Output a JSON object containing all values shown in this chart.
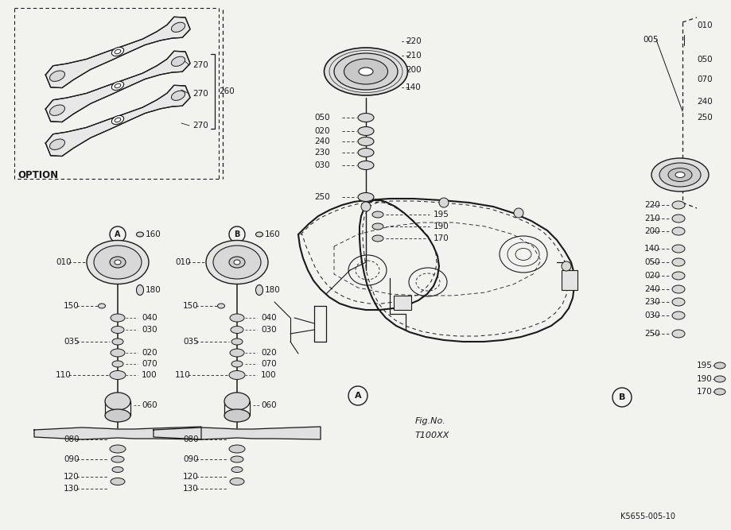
{
  "bg_color": "#f2f2ee",
  "line_color": "#1a1a1a",
  "fig_width": 9.19,
  "fig_height": 6.67,
  "dpi": 100,
  "part_id": "K5655-005-10",
  "fig_no_line1": "Fig.No.",
  "fig_no_line2": "T100XX"
}
